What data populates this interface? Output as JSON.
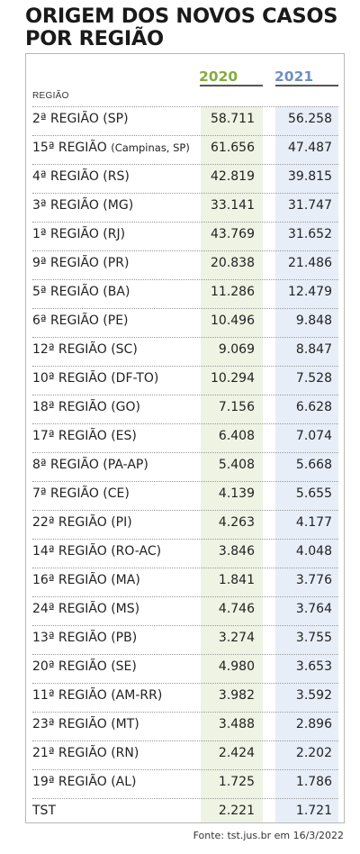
{
  "chart_data": {
    "type": "table",
    "title": [
      "ORIGEM DOS NOVOS CASOS",
      "POR REGIÃO"
    ],
    "column_header": "REGIÃO",
    "series_names": [
      "2020",
      "2021"
    ],
    "colors": {
      "2020": "#82ad3c",
      "2021": "#6f8fc4",
      "band_2020": "#eef3e3",
      "band_2021": "#e8eef8"
    },
    "rows": [
      {
        "region": "2ª REGIÃO (SP)",
        "sub": "",
        "v2020": "58.711",
        "v2021": "56.258"
      },
      {
        "region": "15ª REGIÃO ",
        "sub": "(Campinas, SP)",
        "v2020": "61.656",
        "v2021": "47.487"
      },
      {
        "region": "4ª REGIÃO (RS)",
        "sub": "",
        "v2020": "42.819",
        "v2021": "39.815"
      },
      {
        "region": "3ª REGIÃO (MG)",
        "sub": "",
        "v2020": "33.141",
        "v2021": "31.747"
      },
      {
        "region": "1ª REGIÃO (RJ)",
        "sub": "",
        "v2020": "43.769",
        "v2021": "31.652"
      },
      {
        "region": "9ª REGIÃO (PR)",
        "sub": "",
        "v2020": "20.838",
        "v2021": "21.486"
      },
      {
        "region": "5ª REGIÃO (BA)",
        "sub": "",
        "v2020": "11.286",
        "v2021": "12.479"
      },
      {
        "region": "6ª REGIÃO (PE)",
        "sub": "",
        "v2020": "10.496",
        "v2021": "9.848"
      },
      {
        "region": "12ª REGIÃO (SC)",
        "sub": "",
        "v2020": "9.069",
        "v2021": "8.847"
      },
      {
        "region": "10ª REGIÃO (DF-TO)",
        "sub": "",
        "v2020": "10.294",
        "v2021": "7.528"
      },
      {
        "region": "18ª REGIÃO (GO)",
        "sub": "",
        "v2020": "7.156",
        "v2021": "6.628"
      },
      {
        "region": "17ª REGIÃO (ES)",
        "sub": "",
        "v2020": "6.408",
        "v2021": "7.074"
      },
      {
        "region": "8ª REGIÃO (PA-AP)",
        "sub": "",
        "v2020": "5.408",
        "v2021": "5.668"
      },
      {
        "region": "7ª REGIÃO (CE)",
        "sub": "",
        "v2020": "4.139",
        "v2021": "5.655"
      },
      {
        "region": "22ª REGIÃO (PI)",
        "sub": "",
        "v2020": "4.263",
        "v2021": "4.177"
      },
      {
        "region": "14ª REGIÃO (RO-AC)",
        "sub": "",
        "v2020": "3.846",
        "v2021": "4.048"
      },
      {
        "region": "16ª REGIÃO (MA)",
        "sub": "",
        "v2020": "1.841",
        "v2021": "3.776"
      },
      {
        "region": "24ª REGIÃO (MS)",
        "sub": "",
        "v2020": "4.746",
        "v2021": "3.764"
      },
      {
        "region": "13ª REGIÃO (PB)",
        "sub": "",
        "v2020": "3.274",
        "v2021": "3.755"
      },
      {
        "region": "20ª REGIÃO (SE)",
        "sub": "",
        "v2020": "4.980",
        "v2021": "3.653"
      },
      {
        "region": "11ª REGIÃO (AM-RR)",
        "sub": "",
        "v2020": "3.982",
        "v2021": "3.592"
      },
      {
        "region": "23ª REGIÃO (MT)",
        "sub": "",
        "v2020": "3.488",
        "v2021": "2.896"
      },
      {
        "region": "21ª REGIÃO (RN)",
        "sub": "",
        "v2020": "2.424",
        "v2021": "2.202"
      },
      {
        "region": "19ª REGIÃO (AL)",
        "sub": "",
        "v2020": "1.725",
        "v2021": "1.786"
      },
      {
        "region": "TST",
        "sub": "",
        "v2020": "2.221",
        "v2021": "1.721"
      }
    ],
    "source": "Fonte: tst.jus.br em 16/3/2022"
  }
}
